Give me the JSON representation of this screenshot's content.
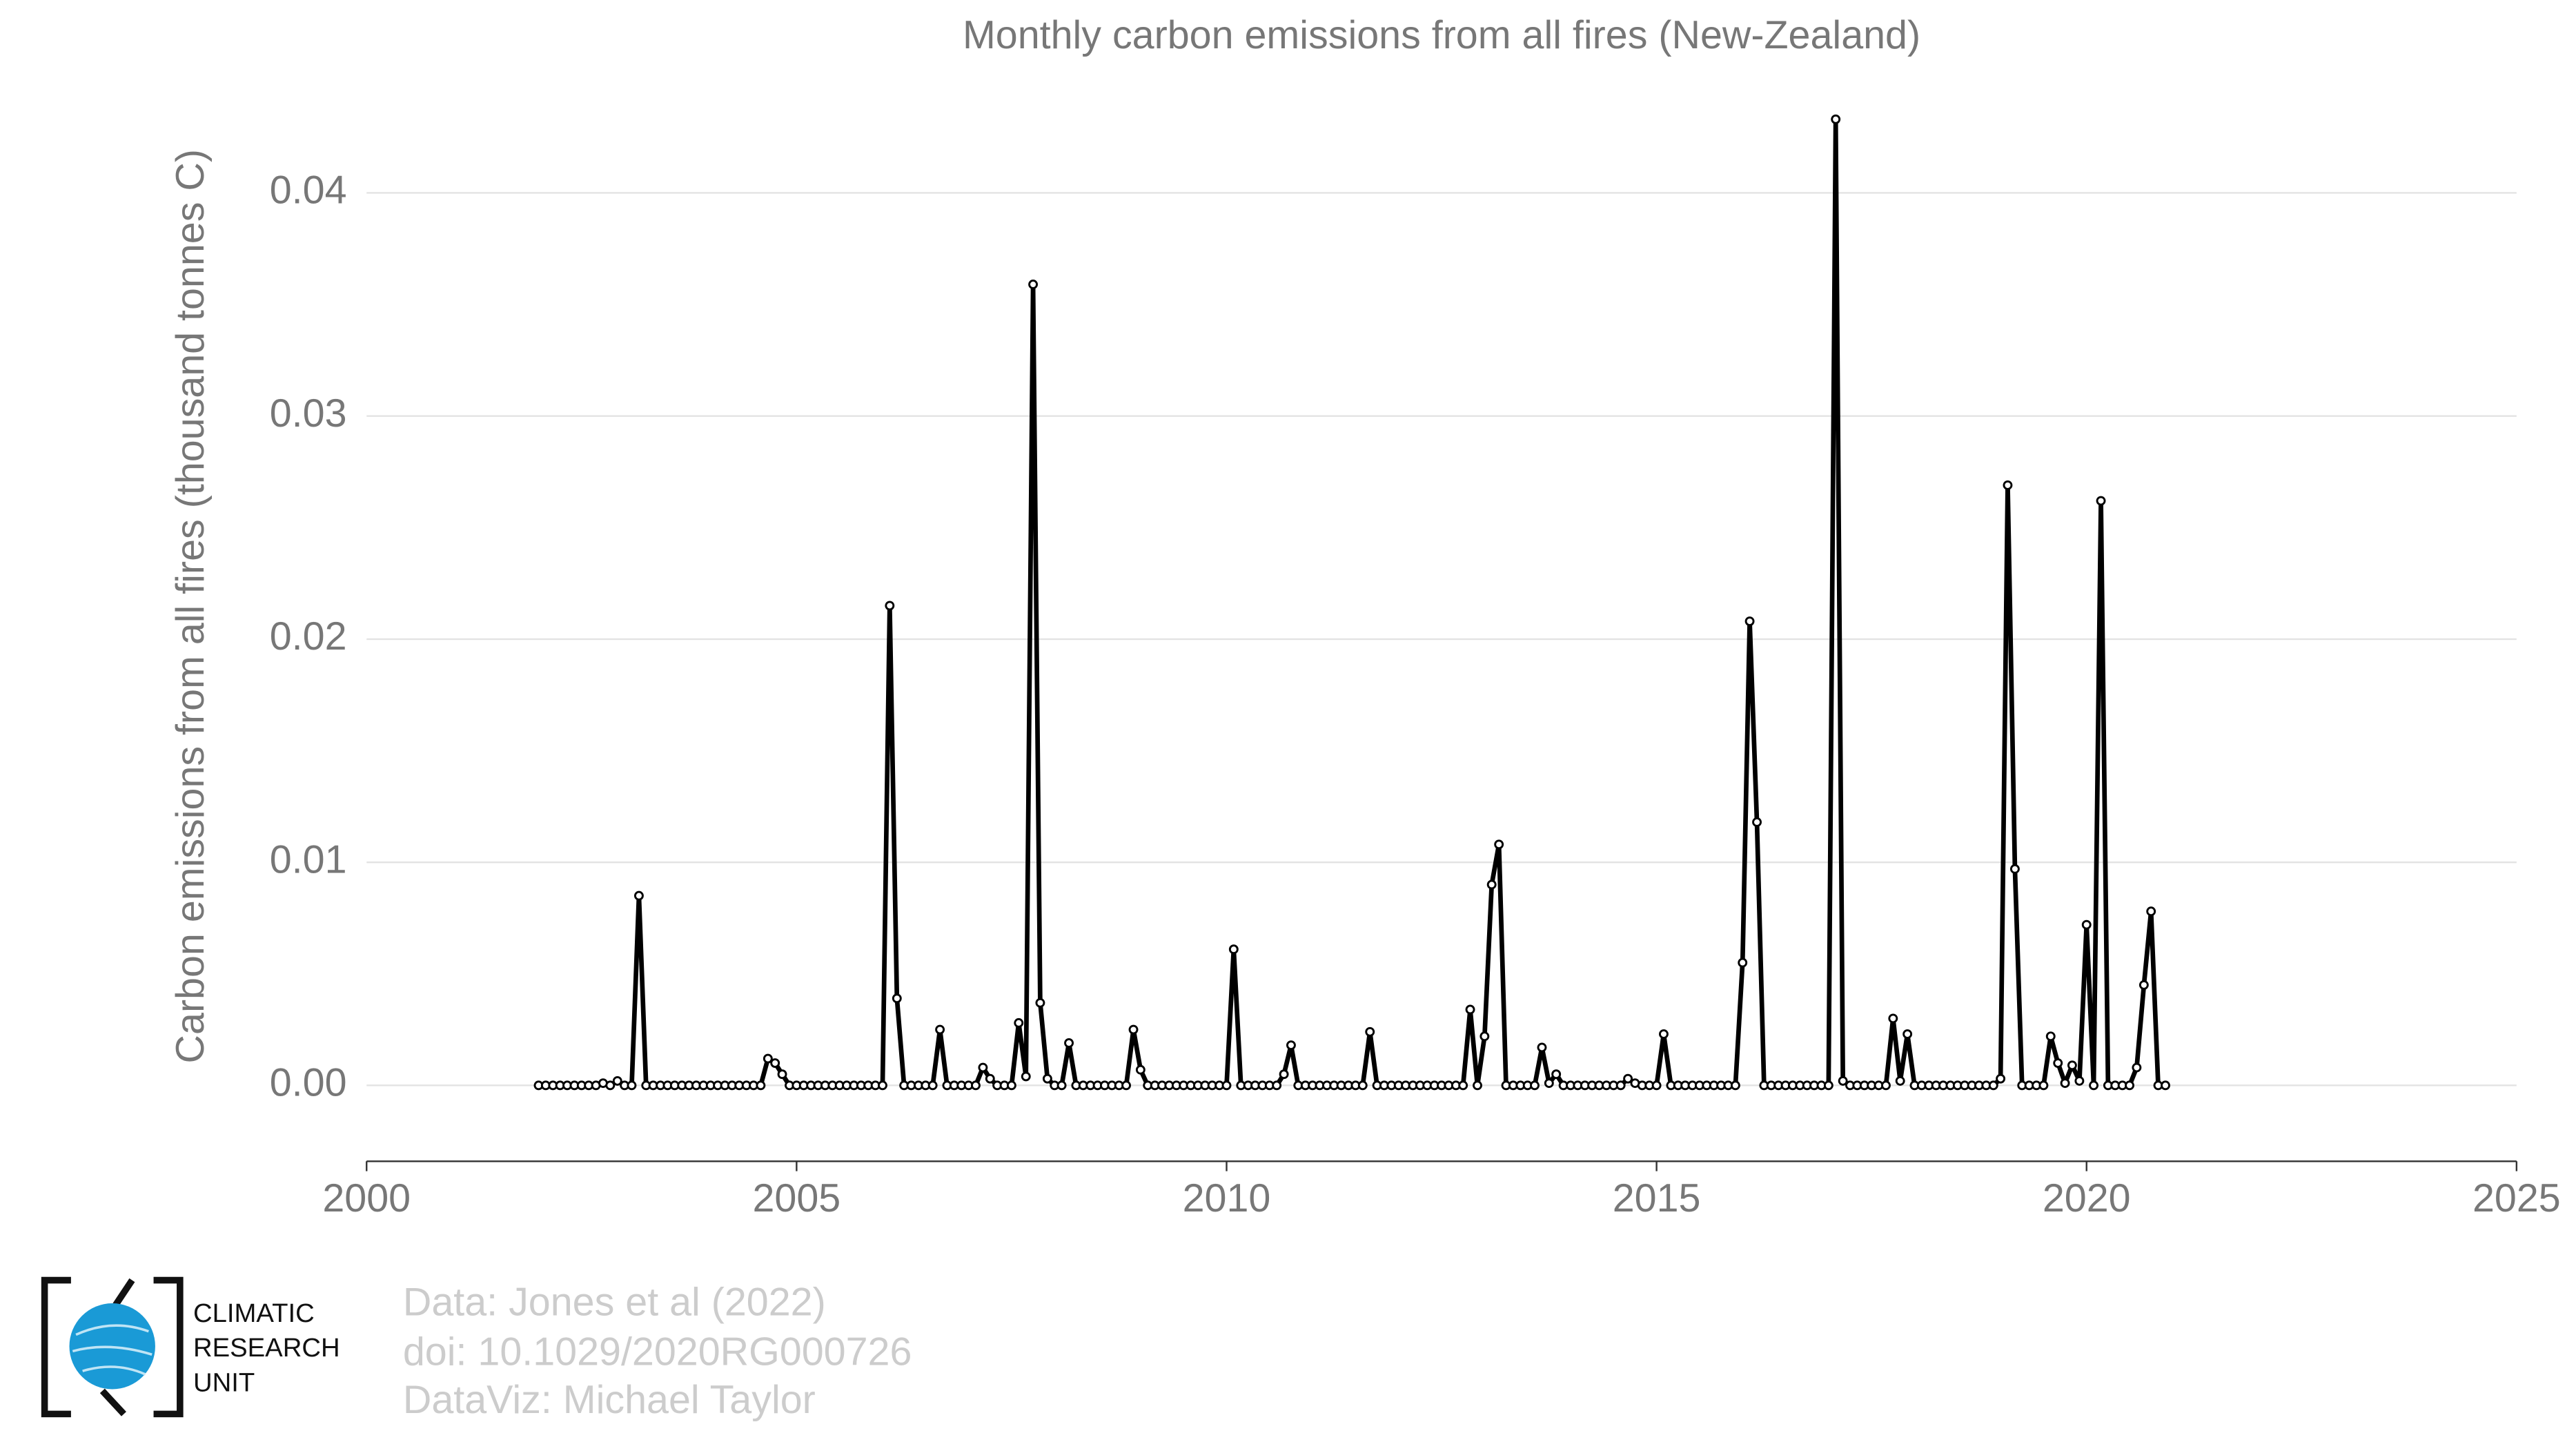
{
  "chart_data": {
    "type": "line",
    "title": "Monthly carbon emissions from all fires (New-Zealand)",
    "ylabel": "Carbon emissions from all fires (thousand tonnes C)",
    "logo": [
      "CLIMATIC",
      "RESEARCH",
      "UNIT"
    ],
    "credits": [
      "Data: Jones et al (2022)",
      "doi: 10.1029/2020RG000726",
      "DataViz: Michael Taylor"
    ],
    "color": "#000000",
    "grid": true,
    "xlim": [
      2000,
      2025
    ],
    "xticks": [
      2000,
      2005,
      2010,
      2015,
      2020,
      2025
    ],
    "ylim": [
      -0.0034,
      0.0445
    ],
    "yticks": [
      {
        "value": 0,
        "label": "0.00"
      },
      0.01,
      0.02,
      0.03,
      0.04
    ],
    "x": [
      2002,
      2002.083,
      2002.167,
      2002.25,
      2002.333,
      2002.417,
      2002.5,
      2002.583,
      2002.667,
      2002.75,
      2002.833,
      2002.917,
      2003,
      2003.083,
      2003.167,
      2003.25,
      2003.333,
      2003.417,
      2003.5,
      2003.583,
      2003.667,
      2003.75,
      2003.833,
      2003.917,
      2004,
      2004.083,
      2004.167,
      2004.25,
      2004.333,
      2004.417,
      2004.5,
      2004.583,
      2004.667,
      2004.75,
      2004.833,
      2004.917,
      2005,
      2005.083,
      2005.167,
      2005.25,
      2005.333,
      2005.417,
      2005.5,
      2005.583,
      2005.667,
      2005.75,
      2005.833,
      2005.917,
      2006,
      2006.083,
      2006.167,
      2006.25,
      2006.333,
      2006.417,
      2006.5,
      2006.583,
      2006.667,
      2006.75,
      2006.833,
      2006.917,
      2007,
      2007.083,
      2007.167,
      2007.25,
      2007.333,
      2007.417,
      2007.5,
      2007.583,
      2007.667,
      2007.75,
      2007.833,
      2007.917,
      2008,
      2008.083,
      2008.167,
      2008.25,
      2008.333,
      2008.417,
      2008.5,
      2008.583,
      2008.667,
      2008.75,
      2008.833,
      2008.917,
      2009,
      2009.083,
      2009.167,
      2009.25,
      2009.333,
      2009.417,
      2009.5,
      2009.583,
      2009.667,
      2009.75,
      2009.833,
      2009.917,
      2010,
      2010.083,
      2010.167,
      2010.25,
      2010.333,
      2010.417,
      2010.5,
      2010.583,
      2010.667,
      2010.75,
      2010.833,
      2010.917,
      2011,
      2011.083,
      2011.167,
      2011.25,
      2011.333,
      2011.417,
      2011.5,
      2011.583,
      2011.667,
      2011.75,
      2011.833,
      2011.917,
      2012,
      2012.083,
      2012.167,
      2012.25,
      2012.333,
      2012.417,
      2012.5,
      2012.583,
      2012.667,
      2012.75,
      2012.833,
      2012.917,
      2013,
      2013.083,
      2013.167,
      2013.25,
      2013.333,
      2013.417,
      2013.5,
      2013.583,
      2013.667,
      2013.75,
      2013.833,
      2013.917,
      2014,
      2014.083,
      2014.167,
      2014.25,
      2014.333,
      2014.417,
      2014.5,
      2014.583,
      2014.667,
      2014.75,
      2014.833,
      2014.917,
      2015,
      2015.083,
      2015.167,
      2015.25,
      2015.333,
      2015.417,
      2015.5,
      2015.583,
      2015.667,
      2015.75,
      2015.833,
      2015.917,
      2016,
      2016.083,
      2016.167,
      2016.25,
      2016.333,
      2016.417,
      2016.5,
      2016.583,
      2016.667,
      2016.75,
      2016.833,
      2016.917,
      2017,
      2017.083,
      2017.167,
      2017.25,
      2017.333,
      2017.417,
      2017.5,
      2017.583,
      2017.667,
      2017.75,
      2017.833,
      2017.917,
      2018,
      2018.083,
      2018.167,
      2018.25,
      2018.333,
      2018.417,
      2018.5,
      2018.583,
      2018.667,
      2018.75,
      2018.833,
      2018.917,
      2019,
      2019.083,
      2019.167,
      2019.25,
      2019.333,
      2019.417,
      2019.5,
      2019.583,
      2019.667,
      2019.75,
      2019.833,
      2019.917,
      2020,
      2020.083,
      2020.167,
      2020.25,
      2020.333,
      2020.417,
      2020.5,
      2020.583,
      2020.667,
      2020.75,
      2020.833,
      2020.917
    ],
    "values": [
      0,
      0,
      0,
      0,
      0,
      0,
      0,
      0,
      0,
      0.0001,
      0,
      0.0002,
      0,
      0,
      0.0085,
      0,
      0,
      0,
      0,
      0,
      0,
      0,
      0,
      0,
      0,
      0,
      0,
      0,
      0,
      0,
      0,
      0,
      0.0012,
      0.001,
      0.0005,
      0,
      0,
      0,
      0,
      0,
      0,
      0,
      0,
      0,
      0,
      0,
      0,
      0,
      0,
      0.0215,
      0.0039,
      0,
      0,
      0,
      0,
      0,
      0.0025,
      0,
      0,
      0,
      0,
      0,
      0.0008,
      0.0003,
      0,
      0,
      0,
      0.0028,
      0.0004,
      0.0359,
      0.0037,
      0.0003,
      0,
      0,
      0.0019,
      0,
      0,
      0,
      0,
      0,
      0,
      0,
      0,
      0.0025,
      0.0007,
      0,
      0,
      0,
      0,
      0,
      0,
      0,
      0,
      0,
      0,
      0,
      0,
      0.0061,
      0,
      0,
      0,
      0,
      0,
      0,
      0.0005,
      0.0018,
      0,
      0,
      0,
      0,
      0,
      0,
      0,
      0,
      0,
      0,
      0.0024,
      0,
      0,
      0,
      0,
      0,
      0,
      0,
      0,
      0,
      0,
      0,
      0,
      0,
      0.0034,
      0,
      0.0022,
      0.009,
      0.0108,
      0,
      0,
      0,
      0,
      0,
      0.0017,
      0.0001,
      0.0005,
      0,
      0,
      0,
      0,
      0,
      0,
      0,
      0,
      0,
      0.0003,
      0.0001,
      0,
      0,
      0,
      0.0023,
      0,
      0,
      0,
      0,
      0,
      0,
      0,
      0,
      0,
      0,
      0.0055,
      0.0208,
      0.0118,
      0,
      0,
      0,
      0,
      0,
      0,
      0,
      0,
      0,
      0,
      0.0433,
      0.0002,
      0,
      0,
      0,
      0,
      0,
      0,
      0.003,
      0.0002,
      0.0023,
      0,
      0,
      0,
      0,
      0,
      0,
      0,
      0,
      0,
      0,
      0,
      0,
      0.0003,
      0.0269,
      0.0097,
      0,
      0,
      0,
      0,
      0.0022,
      0.001,
      0.0001,
      0.0009,
      0.0002,
      0.0072,
      0,
      0.0262,
      0,
      0,
      0,
      0,
      0.0008,
      0.0045,
      0.0078,
      0,
      0
    ]
  }
}
